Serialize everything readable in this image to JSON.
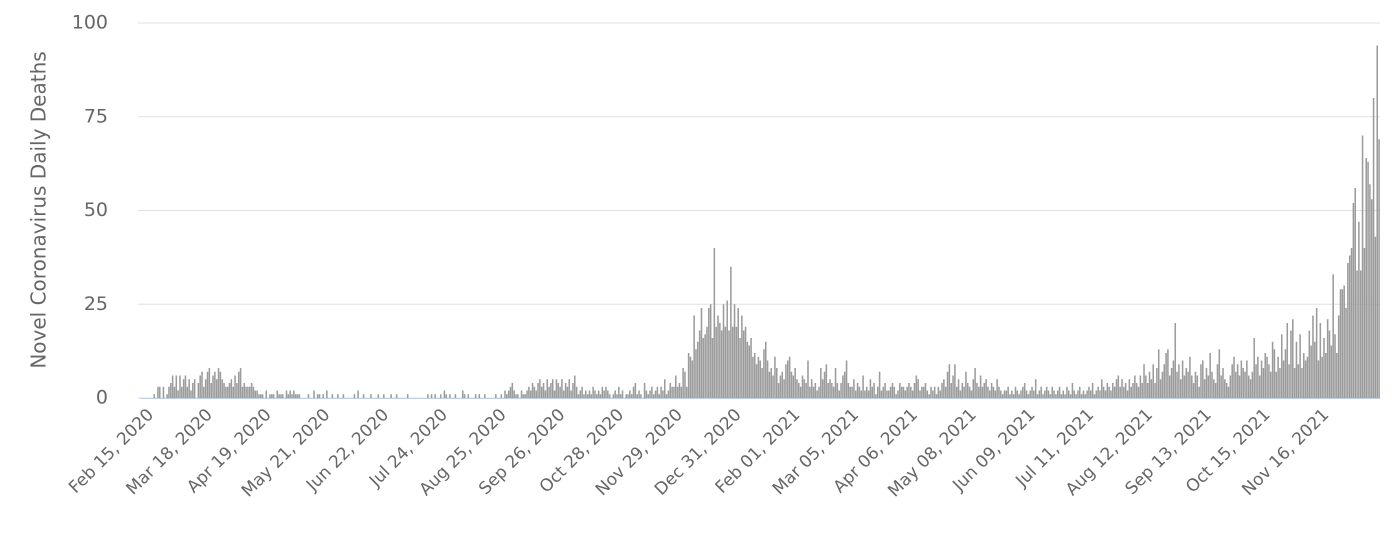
{
  "chart_data": {
    "type": "bar",
    "y_label": "Novel Coronavirus Daily Deaths",
    "color": "#9b9b9b",
    "grid": true,
    "ylim": [
      0,
      100
    ],
    "yticks": [
      0,
      25,
      50,
      75,
      100
    ],
    "categories": [
      "Feb 15, 2020",
      null,
      null,
      null,
      null,
      null,
      null,
      null,
      null,
      null,
      null,
      null,
      null,
      null,
      null,
      null,
      null,
      null,
      null,
      null,
      null,
      null,
      null,
      null,
      null,
      null,
      null,
      null,
      null,
      null,
      null,
      null,
      "Mar 18, 2020",
      null,
      null,
      null,
      null,
      null,
      null,
      null,
      null,
      null,
      null,
      null,
      null,
      null,
      null,
      null,
      null,
      null,
      null,
      null,
      null,
      null,
      null,
      null,
      null,
      null,
      null,
      null,
      null,
      null,
      null,
      null,
      "Apr 19, 2020",
      null,
      null,
      null,
      null,
      null,
      null,
      null,
      null,
      null,
      null,
      null,
      null,
      null,
      null,
      null,
      null,
      null,
      null,
      null,
      null,
      null,
      null,
      null,
      null,
      null,
      null,
      null,
      null,
      null,
      null,
      null,
      "May 21, 2020",
      null,
      null,
      null,
      null,
      null,
      null,
      null,
      null,
      null,
      null,
      null,
      null,
      null,
      null,
      null,
      null,
      null,
      null,
      null,
      null,
      null,
      null,
      null,
      null,
      null,
      null,
      null,
      null,
      null,
      null,
      null,
      "Jun 22, 2020",
      null,
      null,
      null,
      null,
      null,
      null,
      null,
      null,
      null,
      null,
      null,
      null,
      null,
      null,
      null,
      null,
      null,
      null,
      null,
      null,
      null,
      null,
      null,
      null,
      null,
      null,
      null,
      null,
      null,
      null,
      null,
      "Jul 24, 2020",
      null,
      null,
      null,
      null,
      null,
      null,
      null,
      null,
      null,
      null,
      null,
      null,
      null,
      null,
      null,
      null,
      null,
      null,
      null,
      null,
      null,
      null,
      null,
      null,
      null,
      null,
      null,
      null,
      null,
      null,
      null,
      "Aug 25, 2020",
      null,
      null,
      null,
      null,
      null,
      null,
      null,
      null,
      null,
      null,
      null,
      null,
      null,
      null,
      null,
      null,
      null,
      null,
      null,
      null,
      null,
      null,
      null,
      null,
      null,
      null,
      null,
      null,
      null,
      null,
      null,
      "Sep 26, 2020",
      null,
      null,
      null,
      null,
      null,
      null,
      null,
      null,
      null,
      null,
      null,
      null,
      null,
      null,
      null,
      null,
      null,
      null,
      null,
      null,
      null,
      null,
      null,
      null,
      null,
      null,
      null,
      null,
      null,
      null,
      null,
      "Oct 28, 2020",
      null,
      null,
      null,
      null,
      null,
      null,
      null,
      null,
      null,
      null,
      null,
      null,
      null,
      null,
      null,
      null,
      null,
      null,
      null,
      null,
      null,
      null,
      null,
      null,
      null,
      null,
      null,
      null,
      null,
      null,
      null,
      "Nov 29, 2020",
      null,
      null,
      null,
      null,
      null,
      null,
      null,
      null,
      null,
      null,
      null,
      null,
      null,
      null,
      null,
      null,
      null,
      null,
      null,
      null,
      null,
      null,
      null,
      null,
      null,
      null,
      null,
      null,
      null,
      null,
      null,
      "Dec 31, 2020",
      null,
      null,
      null,
      null,
      null,
      null,
      null,
      null,
      null,
      null,
      null,
      null,
      null,
      null,
      null,
      null,
      null,
      null,
      null,
      null,
      null,
      null,
      null,
      null,
      null,
      null,
      null,
      null,
      null,
      null,
      null,
      "Feb 01, 2021",
      null,
      null,
      null,
      null,
      null,
      null,
      null,
      null,
      null,
      null,
      null,
      null,
      null,
      null,
      null,
      null,
      null,
      null,
      null,
      null,
      null,
      null,
      null,
      null,
      null,
      null,
      null,
      null,
      null,
      null,
      null,
      "Mar 05, 2021",
      null,
      null,
      null,
      null,
      null,
      null,
      null,
      null,
      null,
      null,
      null,
      null,
      null,
      null,
      null,
      null,
      null,
      null,
      null,
      null,
      null,
      null,
      null,
      null,
      null,
      null,
      null,
      null,
      null,
      null,
      null,
      "Apr 06, 2021",
      null,
      null,
      null,
      null,
      null,
      null,
      null,
      null,
      null,
      null,
      null,
      null,
      null,
      null,
      null,
      null,
      null,
      null,
      null,
      null,
      null,
      null,
      null,
      null,
      null,
      null,
      null,
      null,
      null,
      null,
      null,
      "May 08, 2021",
      null,
      null,
      null,
      null,
      null,
      null,
      null,
      null,
      null,
      null,
      null,
      null,
      null,
      null,
      null,
      null,
      null,
      null,
      null,
      null,
      null,
      null,
      null,
      null,
      null,
      null,
      null,
      null,
      null,
      null,
      null,
      "Jun 09, 2021",
      null,
      null,
      null,
      null,
      null,
      null,
      null,
      null,
      null,
      null,
      null,
      null,
      null,
      null,
      null,
      null,
      null,
      null,
      null,
      null,
      null,
      null,
      null,
      null,
      null,
      null,
      null,
      null,
      null,
      null,
      null,
      "Jul 11, 2021",
      null,
      null,
      null,
      null,
      null,
      null,
      null,
      null,
      null,
      null,
      null,
      null,
      null,
      null,
      null,
      null,
      null,
      null,
      null,
      null,
      null,
      null,
      null,
      null,
      null,
      null,
      null,
      null,
      null,
      null,
      null,
      "Aug 12, 2021",
      null,
      null,
      null,
      null,
      null,
      null,
      null,
      null,
      null,
      null,
      null,
      null,
      null,
      null,
      null,
      null,
      null,
      null,
      null,
      null,
      null,
      null,
      null,
      null,
      null,
      null,
      null,
      null,
      null,
      null,
      null,
      "Sep 13, 2021",
      null,
      null,
      null,
      null,
      null,
      null,
      null,
      null,
      null,
      null,
      null,
      null,
      null,
      null,
      null,
      null,
      null,
      null,
      null,
      null,
      null,
      null,
      null,
      null,
      null,
      null,
      null,
      null,
      null,
      null,
      null,
      "Oct 15, 2021",
      null,
      null,
      null,
      null,
      null,
      null,
      null,
      null,
      null,
      null,
      null,
      null,
      null,
      null,
      null,
      null,
      null,
      null,
      null,
      null,
      null,
      null,
      null,
      null,
      null,
      null,
      null,
      null,
      null,
      null,
      null,
      "Nov 16, 2021",
      null,
      null,
      null,
      null,
      null,
      null,
      null,
      null,
      null,
      null,
      null,
      null,
      null,
      null,
      null,
      null,
      null,
      null,
      null,
      null,
      null,
      null,
      null,
      null,
      null,
      null,
      null,
      null,
      null,
      null,
      null
    ],
    "values": [
      0,
      0,
      0,
      0,
      1,
      0,
      3,
      3,
      0,
      3,
      0,
      1,
      3,
      4,
      6,
      3,
      6,
      2,
      6,
      3,
      5,
      6,
      3,
      5,
      2,
      4,
      5,
      0,
      4,
      6,
      7,
      3,
      5,
      7,
      8,
      4,
      6,
      7,
      5,
      8,
      7,
      5,
      4,
      3,
      3,
      4,
      5,
      3,
      6,
      4,
      7,
      8,
      3,
      4,
      3,
      3,
      3,
      4,
      3,
      2,
      2,
      1,
      1,
      1,
      0,
      2,
      0,
      1,
      1,
      1,
      0,
      2,
      1,
      1,
      1,
      0,
      2,
      1,
      2,
      1,
      2,
      1,
      1,
      1,
      0,
      0,
      0,
      0,
      1,
      0,
      0,
      2,
      0,
      1,
      1,
      0,
      1,
      0,
      2,
      0,
      0,
      1,
      0,
      0,
      1,
      0,
      0,
      1,
      0,
      0,
      0,
      0,
      0,
      1,
      0,
      2,
      0,
      0,
      1,
      0,
      0,
      0,
      1,
      0,
      0,
      0,
      1,
      0,
      0,
      1,
      0,
      0,
      0,
      1,
      0,
      0,
      1,
      0,
      0,
      0,
      0,
      0,
      1,
      0,
      0,
      0,
      0,
      0,
      0,
      0,
      0,
      0,
      0,
      1,
      0,
      1,
      0,
      1,
      0,
      0,
      1,
      0,
      2,
      1,
      0,
      1,
      0,
      0,
      1,
      0,
      0,
      0,
      2,
      1,
      0,
      1,
      0,
      0,
      0,
      1,
      0,
      1,
      0,
      0,
      1,
      0,
      0,
      0,
      0,
      0,
      1,
      0,
      0,
      1,
      0,
      2,
      1,
      2,
      3,
      4,
      2,
      1,
      1,
      0,
      2,
      1,
      1,
      2,
      3,
      2,
      4,
      3,
      2,
      4,
      5,
      3,
      4,
      2,
      5,
      3,
      4,
      5,
      2,
      5,
      4,
      3,
      5,
      2,
      4,
      3,
      5,
      2,
      4,
      6,
      3,
      1,
      2,
      3,
      1,
      2,
      1,
      2,
      1,
      3,
      2,
      1,
      2,
      1,
      3,
      2,
      3,
      2,
      1,
      0,
      1,
      2,
      1,
      3,
      1,
      2,
      0,
      1,
      1,
      2,
      1,
      3,
      4,
      1,
      2,
      1,
      0,
      4,
      2,
      1,
      2,
      3,
      1,
      2,
      3,
      1,
      3,
      2,
      5,
      1,
      2,
      4,
      3,
      3,
      6,
      3,
      4,
      3,
      8,
      7,
      3,
      12,
      11,
      10,
      22,
      13,
      15,
      18,
      24,
      16,
      17,
      19,
      24,
      25,
      16,
      40,
      19,
      22,
      20,
      18,
      25,
      19,
      26,
      18,
      35,
      19,
      25,
      19,
      24,
      16,
      22,
      18,
      19,
      15,
      14,
      16,
      11,
      12,
      9,
      11,
      10,
      8,
      13,
      15,
      10,
      7,
      8,
      6,
      11,
      8,
      4,
      6,
      7,
      5,
      9,
      10,
      11,
      7,
      6,
      8,
      5,
      4,
      3,
      6,
      5,
      4,
      10,
      3,
      5,
      3,
      4,
      2,
      3,
      8,
      5,
      7,
      9,
      4,
      5,
      4,
      3,
      8,
      4,
      2,
      4,
      6,
      7,
      10,
      4,
      3,
      3,
      5,
      2,
      4,
      3,
      2,
      6,
      2,
      3,
      2,
      5,
      3,
      4,
      1,
      3,
      7,
      2,
      3,
      4,
      2,
      2,
      3,
      4,
      3,
      1,
      2,
      4,
      3,
      3,
      2,
      3,
      4,
      3,
      2,
      4,
      6,
      5,
      2,
      3,
      3,
      4,
      2,
      1,
      3,
      2,
      3,
      1,
      3,
      2,
      4,
      5,
      3,
      7,
      9,
      4,
      6,
      9,
      3,
      5,
      2,
      4,
      3,
      7,
      4,
      3,
      2,
      5,
      8,
      4,
      3,
      6,
      3,
      4,
      5,
      3,
      2,
      4,
      3,
      2,
      5,
      3,
      2,
      1,
      2,
      2,
      3,
      1,
      2,
      1,
      3,
      2,
      1,
      2,
      3,
      4,
      2,
      1,
      2,
      3,
      2,
      5,
      1,
      2,
      3,
      1,
      2,
      3,
      2,
      1,
      3,
      2,
      1,
      2,
      3,
      1,
      2,
      1,
      3,
      2,
      1,
      4,
      2,
      1,
      2,
      3,
      1,
      2,
      1,
      2,
      3,
      2,
      4,
      1,
      2,
      3,
      2,
      5,
      3,
      2,
      4,
      3,
      2,
      4,
      3,
      5,
      6,
      3,
      5,
      3,
      4,
      2,
      5,
      3,
      4,
      6,
      4,
      3,
      6,
      4,
      9,
      6,
      4,
      7,
      5,
      9,
      4,
      8,
      13,
      5,
      7,
      9,
      12,
      13,
      6,
      8,
      10,
      20,
      7,
      9,
      5,
      10,
      6,
      8,
      7,
      11,
      6,
      4,
      7,
      6,
      3,
      9,
      10,
      5,
      8,
      6,
      12,
      7,
      5,
      4,
      9,
      13,
      6,
      8,
      5,
      4,
      3,
      6,
      9,
      11,
      7,
      9,
      6,
      10,
      8,
      7,
      10,
      6,
      5,
      7,
      16,
      9,
      11,
      6,
      10,
      8,
      12,
      11,
      9,
      7,
      15,
      13,
      7,
      11,
      8,
      17,
      10,
      13,
      20,
      9,
      18,
      21,
      8,
      15,
      9,
      17,
      8,
      12,
      10,
      11,
      18,
      14,
      22,
      15,
      24,
      10,
      20,
      11,
      16,
      12,
      21,
      18,
      14,
      33,
      17,
      12,
      22,
      29,
      29,
      30,
      24,
      36,
      38,
      40,
      52,
      56,
      34,
      47,
      34,
      70,
      40,
      64,
      63,
      57,
      53,
      80,
      43,
      94,
      69
    ]
  }
}
